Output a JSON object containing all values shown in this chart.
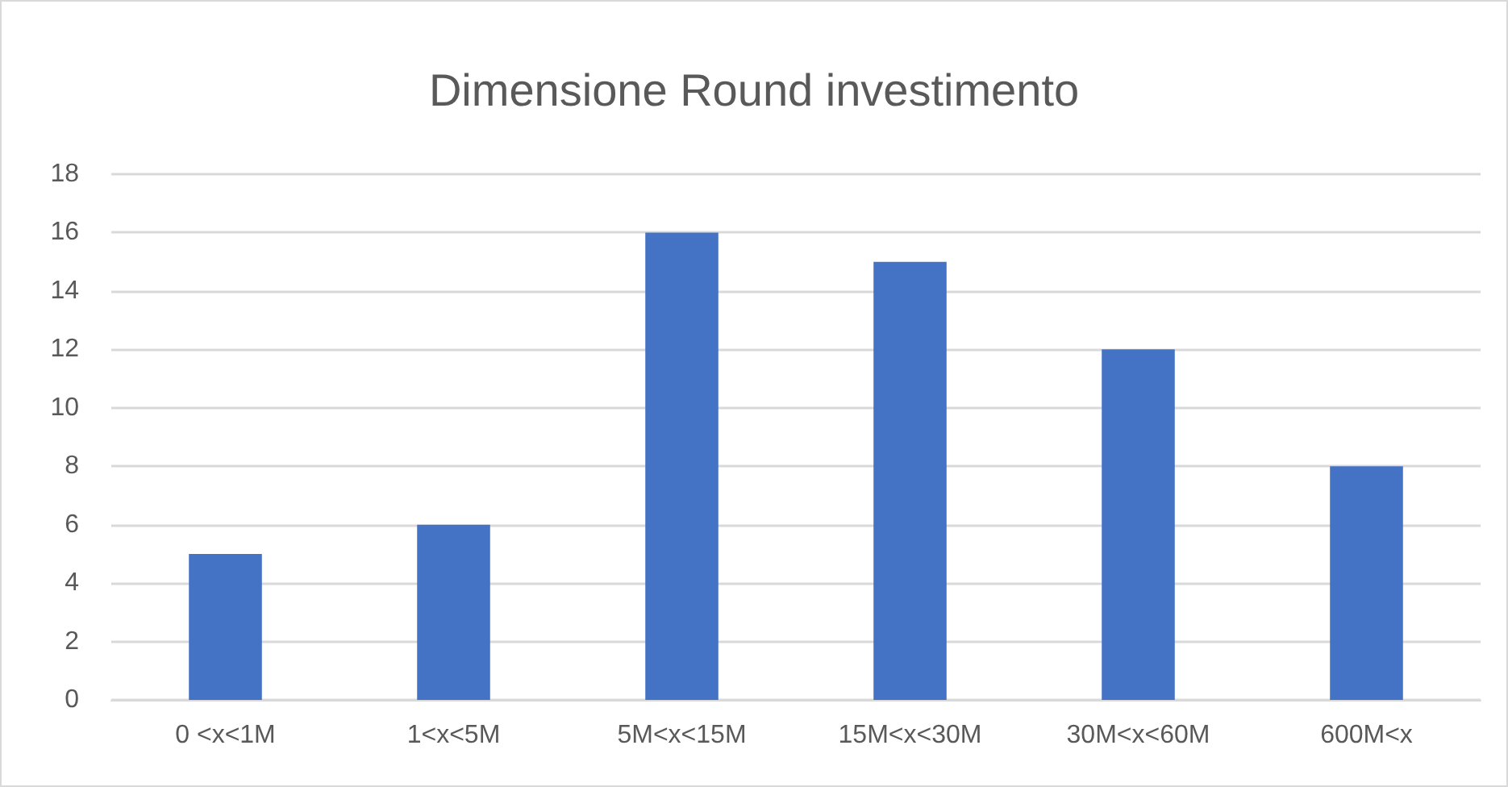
{
  "chart_data": {
    "type": "bar",
    "title": "Dimensione Round investimento",
    "categories": [
      "0 <x<1M",
      "1<x<5M",
      "5M<x<15M",
      "15M<x<30M",
      "30M<x<60M",
      "600M<x"
    ],
    "values": [
      5,
      6,
      16,
      15,
      12,
      8
    ],
    "color": "#4472c4",
    "ylim": [
      0,
      18
    ],
    "yticks": [
      0,
      2,
      4,
      6,
      8,
      10,
      12,
      14,
      16,
      18
    ],
    "grid": "y"
  }
}
